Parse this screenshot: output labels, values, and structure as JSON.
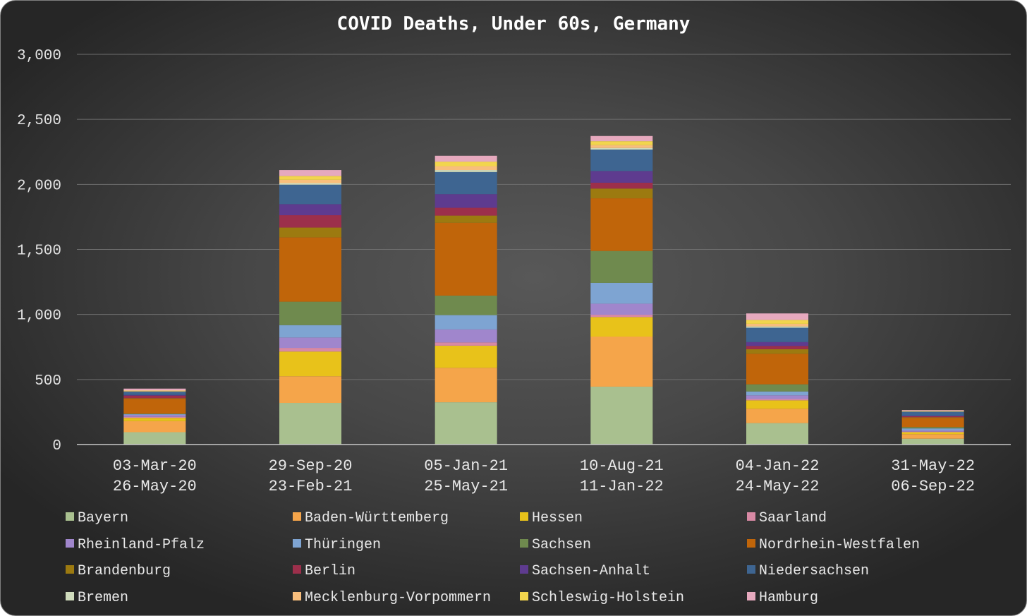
{
  "chart_data": {
    "type": "bar",
    "stacked": true,
    "title": "COVID Deaths, Under 60s, Germany",
    "xlabel": "",
    "ylabel": "",
    "ylim": [
      0,
      3000
    ],
    "yticks": [
      0,
      500,
      1000,
      1500,
      2000,
      2500,
      3000
    ],
    "ytick_labels": [
      "0",
      "500",
      "1,000",
      "1,500",
      "2,000",
      "2,500",
      "3,000"
    ],
    "grid": true,
    "legend_position": "bottom",
    "categories": [
      [
        "03-Mar-20",
        "26-May-20"
      ],
      [
        "29-Sep-20",
        "23-Feb-21"
      ],
      [
        "05-Jan-21",
        "25-May-21"
      ],
      [
        "10-Aug-21",
        "11-Jan-22"
      ],
      [
        "04-Jan-22",
        "24-May-22"
      ],
      [
        "31-May-22",
        "06-Sep-22"
      ]
    ],
    "series": [
      {
        "name": "Bayern",
        "color": "#a9c08f",
        "values": [
          95,
          320,
          325,
          445,
          165,
          45
        ]
      },
      {
        "name": "Baden-Württemberg",
        "color": "#f5a54a",
        "values": [
          85,
          205,
          265,
          385,
          110,
          35
        ]
      },
      {
        "name": "Hessen",
        "color": "#e8c21a",
        "values": [
          25,
          190,
          170,
          150,
          65,
          15
        ]
      },
      {
        "name": "Saarland",
        "color": "#d889a4",
        "values": [
          8,
          28,
          25,
          18,
          10,
          4
        ]
      },
      {
        "name": "Rheinland-Pfalz",
        "color": "#a086cc",
        "values": [
          15,
          80,
          100,
          85,
          28,
          10
        ]
      },
      {
        "name": "Thüringen",
        "color": "#7ea4d2",
        "values": [
          5,
          95,
          110,
          160,
          30,
          15
        ]
      },
      {
        "name": "Sachsen",
        "color": "#6f8a4e",
        "values": [
          4,
          180,
          150,
          245,
          55,
          10
        ]
      },
      {
        "name": "Nordrhein-Westfalen",
        "color": "#c0650a",
        "values": [
          115,
          495,
          560,
          405,
          235,
          70
        ]
      },
      {
        "name": "Brandenburg",
        "color": "#9c7a10",
        "values": [
          4,
          75,
          55,
          75,
          35,
          5
        ]
      },
      {
        "name": "Berlin",
        "color": "#9c2f4b",
        "values": [
          20,
          95,
          60,
          45,
          25,
          8
        ]
      },
      {
        "name": "Sachsen-Anhalt",
        "color": "#5e3b8f",
        "values": [
          5,
          85,
          105,
          90,
          30,
          5
        ]
      },
      {
        "name": "Niedersachsen",
        "color": "#3e6591",
        "values": [
          25,
          150,
          170,
          165,
          110,
          30
        ]
      },
      {
        "name": "Bremen",
        "color": "#cfdbbc",
        "values": [
          2,
          12,
          15,
          12,
          10,
          2
        ]
      },
      {
        "name": "Mecklenburg-Vorpommern",
        "color": "#f8be7c",
        "values": [
          3,
          25,
          30,
          22,
          20,
          3
        ]
      },
      {
        "name": "Schleswig-Holstein",
        "color": "#f2d54d",
        "values": [
          4,
          30,
          35,
          30,
          30,
          3
        ]
      },
      {
        "name": "Hamburg",
        "color": "#e6a9be",
        "values": [
          15,
          45,
          45,
          40,
          50,
          5
        ]
      }
    ]
  }
}
